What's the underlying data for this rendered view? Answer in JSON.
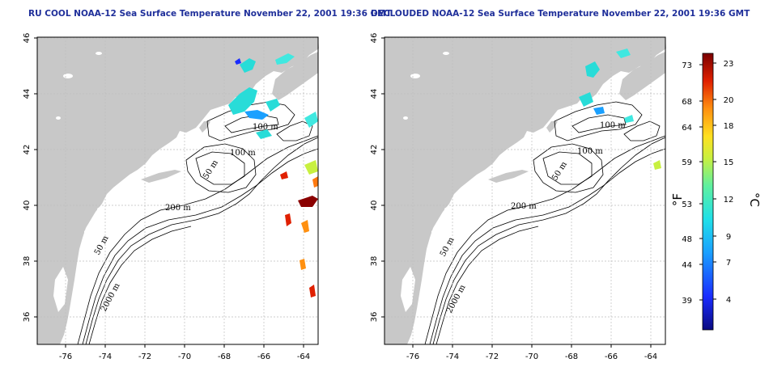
{
  "titles": {
    "left": "RU COOL NOAA-12 Sea Surface Temperature November 22, 2001 19:36 GMT",
    "right": "DECLOUDED NOAA-12 Sea Surface Temperature November 22, 2001 19:36 GMT"
  },
  "axes": {
    "lon_ticks": [
      "-76",
      "-74",
      "-72",
      "-70",
      "-68",
      "-66",
      "-64"
    ],
    "lat_ticks": [
      "46",
      "44",
      "42",
      "40",
      "38",
      "36"
    ]
  },
  "contour_labels": {
    "left": [
      "100 m",
      "100 m",
      "50 m",
      "200 m",
      "50 m",
      "2000 m"
    ],
    "right": [
      "100 m",
      "100 m",
      "50 m",
      "200 m",
      "50 m",
      "2000 m"
    ]
  },
  "colorbar": {
    "fahrenheit_ticks": [
      "73",
      "68",
      "64",
      "59",
      "53",
      "48",
      "44",
      "39"
    ],
    "celsius_ticks": [
      "23",
      "20",
      "18",
      "15",
      "12",
      "9",
      "7",
      "4"
    ],
    "unit_f": "°F",
    "unit_c": "°C"
  },
  "colors": {
    "title": "#1f2f9a",
    "land": "#c8c8c8",
    "ocean": "#ffffff",
    "grid": "#bdbdbd"
  }
}
